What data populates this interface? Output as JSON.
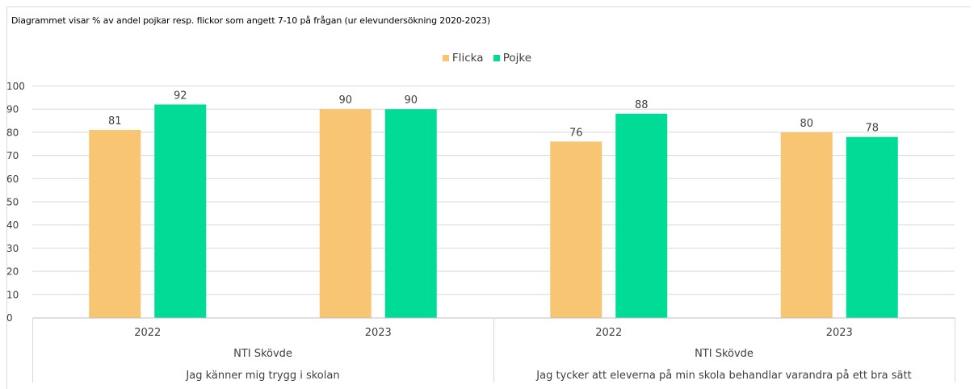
{
  "chart_data": {
    "type": "bar",
    "title": "Diagrammet visar % av andel pojkar resp. flickor som angett 7-10 på frågan (ur elevundersökning 2020-2023)",
    "categories": [
      {
        "year": "2022",
        "school": "NTI Skövde",
        "question": "Jag känner mig trygg i skolan"
      },
      {
        "year": "2023",
        "school": "NTI Skövde",
        "question": "Jag känner mig trygg i skolan"
      },
      {
        "year": "2022",
        "school": "NTI Skövde",
        "question": "Jag tycker att eleverna på min skola behandlar varandra på ett bra sätt"
      },
      {
        "year": "2023",
        "school": "NTI Skövde",
        "question": "Jag tycker att eleverna på min skola behandlar varandra på ett bra sätt"
      }
    ],
    "groups": [
      {
        "school": "NTI Skövde",
        "question": "Jag känner mig trygg i skolan"
      },
      {
        "school": "NTI Skövde",
        "question": "Jag tycker att eleverna på min skola behandlar varandra på ett bra sätt"
      }
    ],
    "series": [
      {
        "name": "Flicka",
        "color": "#F8C572",
        "values": [
          81,
          90,
          76,
          80
        ]
      },
      {
        "name": "Pojke",
        "color": "#00DC96",
        "values": [
          92,
          90,
          88,
          78
        ]
      }
    ],
    "ylim": [
      0,
      100
    ],
    "yticks": [
      "0",
      "10",
      "20",
      "30",
      "40",
      "50",
      "60",
      "70",
      "80",
      "90",
      "100"
    ],
    "grid": true,
    "legend_position": "top-center"
  }
}
